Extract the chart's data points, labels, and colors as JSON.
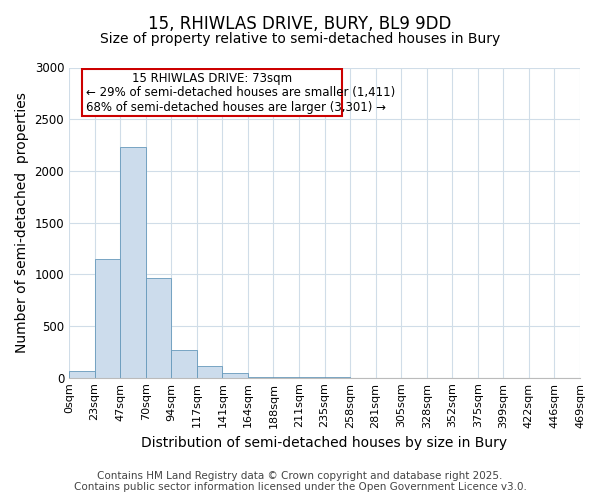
{
  "title": "15, RHIWLAS DRIVE, BURY, BL9 9DD",
  "subtitle": "Size of property relative to semi-detached houses in Bury",
  "xlabel": "Distribution of semi-detached houses by size in Bury",
  "ylabel": "Number of semi-detached  properties",
  "footer_line1": "Contains HM Land Registry data © Crown copyright and database right 2025.",
  "footer_line2": "Contains public sector information licensed under the Open Government Licence v3.0.",
  "annotation_line1": "15 RHIWLAS DRIVE: 73sqm",
  "annotation_line2": "← 29% of semi-detached houses are smaller (1,411)",
  "annotation_line3": "68% of semi-detached houses are larger (3,301) →",
  "bin_labels": [
    "0sqm",
    "23sqm",
    "47sqm",
    "70sqm",
    "94sqm",
    "117sqm",
    "141sqm",
    "164sqm",
    "188sqm",
    "211sqm",
    "235sqm",
    "258sqm",
    "281sqm",
    "305sqm",
    "328sqm",
    "352sqm",
    "375sqm",
    "399sqm",
    "422sqm",
    "446sqm",
    "469sqm"
  ],
  "bar_values": [
    60,
    1150,
    2230,
    960,
    270,
    110,
    50,
    10,
    5,
    3,
    2,
    1,
    0,
    0,
    0,
    0,
    0,
    0,
    0,
    0
  ],
  "bar_color": "#ccdcec",
  "bar_edge_color": "#6699bb",
  "ylim": [
    0,
    3000
  ],
  "yticks": [
    0,
    500,
    1000,
    1500,
    2000,
    2500,
    3000
  ],
  "background_color": "#ffffff",
  "plot_bg_color": "#ffffff",
  "grid_color": "#d0dde8",
  "annotation_box_edge_color": "#cc0000",
  "annotation_box_face_color": "#ffffff",
  "title_fontsize": 12,
  "subtitle_fontsize": 10,
  "axis_label_fontsize": 10,
  "tick_fontsize": 8,
  "annotation_fontsize": 8.5,
  "footer_fontsize": 7.5
}
